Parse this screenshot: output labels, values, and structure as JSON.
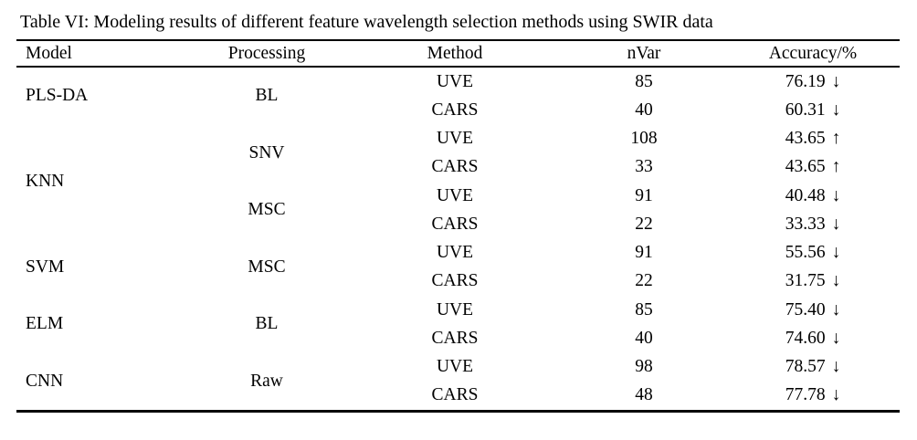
{
  "caption": "Table VI: Modeling results of different feature wavelength selection methods using SWIR data",
  "table": {
    "columns": [
      "Model",
      "Processing",
      "Method",
      "nVar",
      "Accuracy/%"
    ],
    "rows": [
      {
        "model": "PLS-DA",
        "model_span": 2,
        "processing": "BL",
        "proc_span": 2,
        "method": "UVE",
        "nvar": "85",
        "accuracy": "76.19",
        "arrow": "↓"
      },
      {
        "method": "CARS",
        "nvar": "40",
        "accuracy": "60.31",
        "arrow": "↓"
      },
      {
        "model": "KNN",
        "model_span": 4,
        "processing": "SNV",
        "proc_span": 2,
        "method": "UVE",
        "nvar": "108",
        "accuracy": "43.65",
        "arrow": "↑"
      },
      {
        "method": "CARS",
        "nvar": "33",
        "accuracy": "43.65",
        "arrow": "↑"
      },
      {
        "processing": "MSC",
        "proc_span": 2,
        "method": "UVE",
        "nvar": "91",
        "accuracy": "40.48",
        "arrow": "↓"
      },
      {
        "method": "CARS",
        "nvar": "22",
        "accuracy": "33.33",
        "arrow": "↓"
      },
      {
        "model": "SVM",
        "model_span": 2,
        "processing": "MSC",
        "proc_span": 2,
        "method": "UVE",
        "nvar": "91",
        "accuracy": "55.56",
        "arrow": "↓"
      },
      {
        "method": "CARS",
        "nvar": "22",
        "accuracy": "31.75",
        "arrow": "↓"
      },
      {
        "model": "ELM",
        "model_span": 2,
        "processing": "BL",
        "proc_span": 2,
        "method": "UVE",
        "nvar": "85",
        "accuracy": "75.40",
        "arrow": "↓"
      },
      {
        "method": "CARS",
        "nvar": "40",
        "accuracy": "74.60",
        "arrow": "↓"
      },
      {
        "model": "CNN",
        "model_span": 2,
        "processing": "Raw",
        "proc_span": 2,
        "method": "UVE",
        "nvar": "98",
        "accuracy": "78.57",
        "arrow": "↓"
      },
      {
        "method": "CARS",
        "nvar": "48",
        "accuracy": "77.78",
        "arrow": "↓"
      }
    ]
  }
}
